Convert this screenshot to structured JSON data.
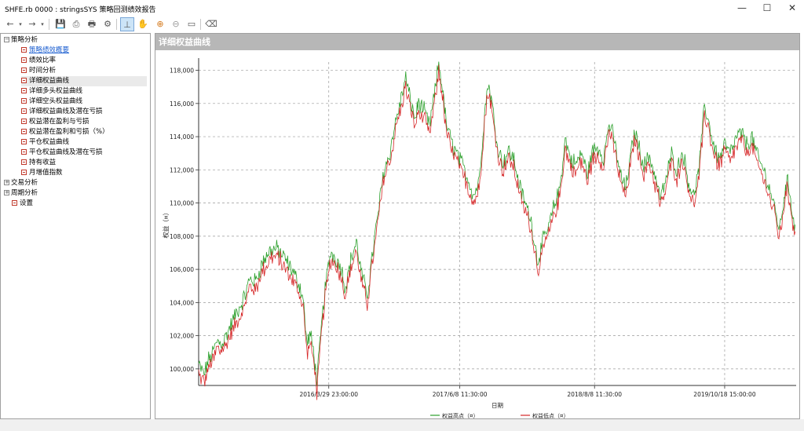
{
  "window": {
    "title": "SHFE.rb 0000 : stringsSYS 策略回测绩效报告",
    "minimize": "—",
    "maximize": "☐",
    "close": "✕"
  },
  "toolbar": {
    "back_icon": "←",
    "dropdown_icon": "▾",
    "forward_icon": "→",
    "save_icon": "💾",
    "export_icon": "⎙",
    "print_icon": "🖶",
    "settings_icon": "⚙",
    "crosshair_icon": "⊥",
    "pan_icon": "✋",
    "zoom_in_icon": "⊕",
    "zoom_out_icon": "⊖",
    "fit_icon": "▭",
    "eraser_icon": "⌫"
  },
  "tree": {
    "items": [
      {
        "label": "策略分析",
        "expander": "−"
      },
      {
        "label": "策略绩效概要"
      },
      {
        "label": "绩效比率"
      },
      {
        "label": "时间分析"
      },
      {
        "label": "详细权益曲线"
      },
      {
        "label": "详细多头权益曲线"
      },
      {
        "label": "详细空头权益曲线"
      },
      {
        "label": "详细权益曲线及潜在亏损"
      },
      {
        "label": "权益潜在盈利与亏损"
      },
      {
        "label": "权益潜在盈利和亏损（%）"
      },
      {
        "label": "平仓权益曲线"
      },
      {
        "label": "平仓权益曲线及潜在亏损"
      },
      {
        "label": "持有收益"
      },
      {
        "label": "月增值指数"
      },
      {
        "label": "交易分析",
        "expander": "+"
      },
      {
        "label": "周期分析",
        "expander": "+"
      },
      {
        "label": "设置"
      }
    ]
  },
  "panel": {
    "title": "详细权益曲线"
  },
  "chart_data": {
    "type": "line",
    "title": "",
    "xlabel": "日期",
    "ylabel": "权益（¤）",
    "ylim": [
      99000,
      118500
    ],
    "yticks": [
      "100,000",
      "102,000",
      "104,000",
      "106,000",
      "108,000",
      "110,000",
      "112,000",
      "114,000",
      "116,000",
      "118,000"
    ],
    "xticks": [
      "2016/3/29 23:00:00",
      "2017/6/8 11:30:00",
      "2018/8/8 11:30:00",
      "2019/10/18 15:00:00"
    ],
    "grid": true,
    "legend_position": "bottom",
    "series": [
      {
        "name": "权益高点（¤）",
        "color": "#2ca02c"
      },
      {
        "name": "权益低点（¤）",
        "color": "#d62728"
      }
    ],
    "waypoints": [
      [
        0,
        100000
      ],
      [
        6,
        99400
      ],
      [
        10,
        100200
      ],
      [
        16,
        100800
      ],
      [
        20,
        101400
      ],
      [
        26,
        101300
      ],
      [
        32,
        102000
      ],
      [
        40,
        103000
      ],
      [
        46,
        103600
      ],
      [
        50,
        104100
      ],
      [
        56,
        105200
      ],
      [
        62,
        105000
      ],
      [
        70,
        106200
      ],
      [
        78,
        106900
      ],
      [
        86,
        107000
      ],
      [
        94,
        106400
      ],
      [
        102,
        105700
      ],
      [
        110,
        104800
      ],
      [
        114,
        104000
      ],
      [
        118,
        101300
      ],
      [
        122,
        101800
      ],
      [
        126,
        100600
      ],
      [
        129,
        98900
      ],
      [
        134,
        102300
      ],
      [
        138,
        104600
      ],
      [
        144,
        106800
      ],
      [
        150,
        106400
      ],
      [
        156,
        105800
      ],
      [
        160,
        104600
      ],
      [
        166,
        106300
      ],
      [
        172,
        107400
      ],
      [
        178,
        105400
      ],
      [
        184,
        104200
      ],
      [
        190,
        106800
      ],
      [
        196,
        109200
      ],
      [
        202,
        111700
      ],
      [
        208,
        112600
      ],
      [
        214,
        114400
      ],
      [
        220,
        115800
      ],
      [
        226,
        117300
      ],
      [
        230,
        116200
      ],
      [
        236,
        114800
      ],
      [
        240,
        115800
      ],
      [
        246,
        115300
      ],
      [
        252,
        114400
      ],
      [
        258,
        116500
      ],
      [
        262,
        118200
      ],
      [
        266,
        116700
      ],
      [
        270,
        114600
      ],
      [
        276,
        113400
      ],
      [
        282,
        112700
      ],
      [
        288,
        112000
      ],
      [
        294,
        111200
      ],
      [
        300,
        110200
      ],
      [
        306,
        111100
      ],
      [
        312,
        115200
      ],
      [
        316,
        117000
      ],
      [
        320,
        115800
      ],
      [
        326,
        113200
      ],
      [
        332,
        112200
      ],
      [
        338,
        112900
      ],
      [
        344,
        112400
      ],
      [
        350,
        110800
      ],
      [
        356,
        109800
      ],
      [
        362,
        108900
      ],
      [
        366,
        107600
      ],
      [
        370,
        106200
      ],
      [
        376,
        107500
      ],
      [
        382,
        108300
      ],
      [
        388,
        109600
      ],
      [
        394,
        110600
      ],
      [
        400,
        113600
      ],
      [
        406,
        112400
      ],
      [
        412,
        112100
      ],
      [
        418,
        112800
      ],
      [
        424,
        111500
      ],
      [
        430,
        112900
      ],
      [
        436,
        113100
      ],
      [
        442,
        112500
      ],
      [
        448,
        114600
      ],
      [
        454,
        113400
      ],
      [
        460,
        111500
      ],
      [
        466,
        110600
      ],
      [
        472,
        112800
      ],
      [
        476,
        114100
      ],
      [
        480,
        113200
      ],
      [
        486,
        112000
      ],
      [
        492,
        112600
      ],
      [
        498,
        111400
      ],
      [
        504,
        110000
      ],
      [
        510,
        111200
      ],
      [
        516,
        112700
      ],
      [
        522,
        111700
      ],
      [
        528,
        112900
      ],
      [
        534,
        111200
      ],
      [
        540,
        110100
      ],
      [
        546,
        111800
      ],
      [
        552,
        115600
      ],
      [
        556,
        114800
      ],
      [
        562,
        113200
      ],
      [
        568,
        112400
      ],
      [
        574,
        113300
      ],
      [
        580,
        112700
      ],
      [
        586,
        113600
      ],
      [
        592,
        114000
      ],
      [
        598,
        113300
      ],
      [
        604,
        113700
      ],
      [
        610,
        112500
      ],
      [
        616,
        111800
      ],
      [
        622,
        110800
      ],
      [
        628,
        109600
      ],
      [
        634,
        108100
      ],
      [
        638,
        109800
      ],
      [
        642,
        111100
      ],
      [
        646,
        110100
      ],
      [
        650,
        108300
      ],
      [
        652,
        108000
      ]
    ]
  }
}
